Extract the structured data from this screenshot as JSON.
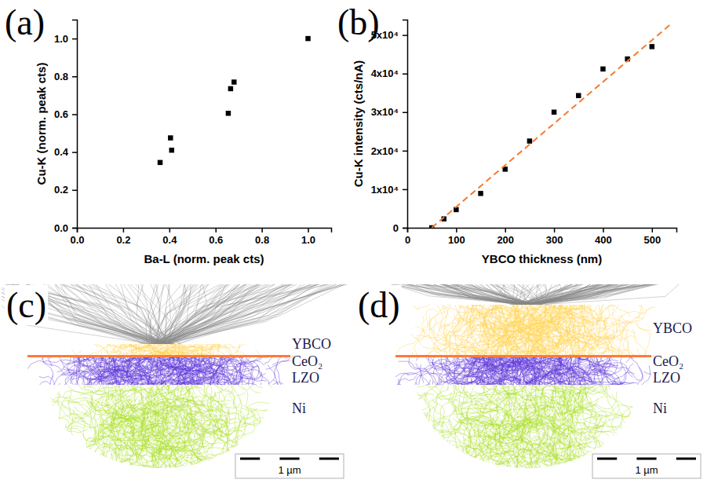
{
  "chart_data": [
    {
      "type": "scatter",
      "panel_label": "(a)",
      "x_label": "Ba-L (norm. peak cts)",
      "y_label": "Cu-K (norm. peak cts)",
      "x": [
        0.36,
        0.405,
        0.41,
        0.655,
        0.665,
        0.68,
        1.0
      ],
      "values": [
        0.345,
        0.475,
        0.41,
        0.605,
        0.735,
        0.77,
        1.0
      ],
      "color": "#000000",
      "marker": "square",
      "xlim": [
        0,
        1.1
      ],
      "ylim": [
        0,
        1.1
      ],
      "xticks": [
        {
          "value": 0,
          "label": "0.0"
        },
        0.2,
        0.4,
        0.6,
        0.8,
        {
          "value": 1,
          "label": "1.0"
        }
      ],
      "yticks": [
        {
          "value": 0,
          "label": "0.0"
        },
        0.2,
        0.4,
        0.6,
        0.8,
        {
          "value": 1,
          "label": "1.0"
        }
      ]
    },
    {
      "type": "scatter",
      "panel_label": "(b)",
      "x_label": "YBCO thickness (nm)",
      "y_label": "Cu-K intensity (cts/nA)",
      "series": [
        {
          "type": "scatter",
          "color": "#000000",
          "marker": "square",
          "x": [
            50,
            75,
            100,
            150,
            200,
            250,
            300,
            350,
            400,
            450,
            500
          ],
          "values": [
            0,
            2300,
            4700,
            8900,
            15200,
            22500,
            30000,
            34300,
            41200,
            43800,
            47000
          ]
        },
        {
          "type": "line",
          "color": "#f47a30",
          "line_style": "dashed",
          "x": [
            50,
            540
          ],
          "values": [
            0,
            53000
          ]
        }
      ],
      "xlim": [
        0,
        550
      ],
      "ylim": [
        0,
        54000
      ],
      "xticks": [
        0,
        100,
        200,
        300,
        400,
        500
      ],
      "yticks": [
        0,
        {
          "value": 10000,
          "label": "1x10⁴"
        },
        {
          "value": 20000,
          "label": "2x10⁴"
        },
        {
          "value": 30000,
          "label": "3x10⁴"
        },
        {
          "value": 40000,
          "label": "4x10⁴"
        },
        {
          "value": 50000,
          "label": "5x10⁴"
        }
      ]
    }
  ],
  "diagrams": [
    {
      "panel_label": "(c)",
      "layers": [
        {
          "name": "YBCO",
          "color": "#ffd24a"
        },
        {
          "name": "CeO₂",
          "color": "#ff7a3a"
        },
        {
          "name": "LZO",
          "color": "#5b32d8"
        },
        {
          "name": "Ni",
          "color": "#a8e022"
        }
      ],
      "scale_bar": "1 µm"
    },
    {
      "panel_label": "(d)",
      "layers": [
        {
          "name": "YBCO",
          "color": "#ffd24a"
        },
        {
          "name": "CeO₂",
          "color": "#ff7a3a"
        },
        {
          "name": "LZO",
          "color": "#5b32d8"
        },
        {
          "name": "Ni",
          "color": "#a8e022"
        }
      ],
      "scale_bar": "1 µm"
    }
  ]
}
